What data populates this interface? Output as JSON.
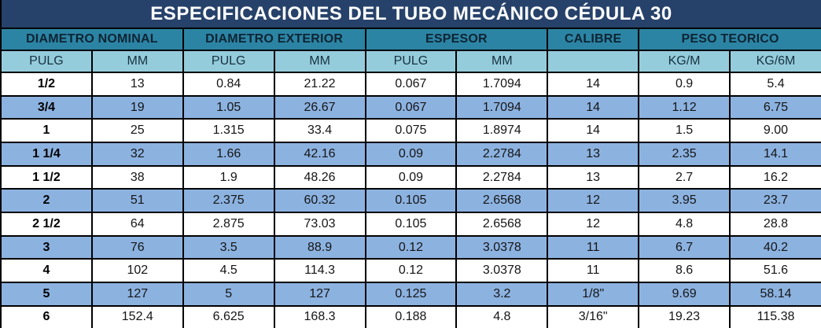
{
  "title": "ESPECIFICACIONES DEL TUBO MECÁNICO CÉDULA 30",
  "colors": {
    "title_bg": "#27426A",
    "title_text": "#FFFFFF",
    "group_header_bg": "#2C84A4",
    "subheader_bg": "#95CCDC",
    "row_bg": "#FFFFFF",
    "row_alt_bg": "#8CB2E0",
    "border": "#000000"
  },
  "table": {
    "group_headers": [
      {
        "label": "DIAMETRO NOMINAL",
        "colspan": 2
      },
      {
        "label": "DIAMETRO EXTERIOR",
        "colspan": 2
      },
      {
        "label": "ESPESOR",
        "colspan": 2
      },
      {
        "label": "CALIBRE",
        "colspan": 1
      },
      {
        "label": "PESO TEORICO",
        "colspan": 2
      }
    ],
    "subheaders": [
      "PULG",
      "MM",
      "PULG",
      "MM",
      "PULG",
      "MM",
      "",
      "KG/M",
      "KG/6M"
    ],
    "rows": [
      [
        "1/2",
        "13",
        "0.84",
        "21.22",
        "0.067",
        "1.7094",
        "14",
        "0.9",
        "5.4"
      ],
      [
        "3/4",
        "19",
        "1.05",
        "26.67",
        "0.067",
        "1.7094",
        "14",
        "1.12",
        "6.75"
      ],
      [
        "1",
        "25",
        "1.315",
        "33.4",
        "0.075",
        "1.8974",
        "14",
        "1.5",
        "9.00"
      ],
      [
        "1 1/4",
        "32",
        "1.66",
        "42.16",
        "0.09",
        "2.2784",
        "13",
        "2.35",
        "14.1"
      ],
      [
        "1 1/2",
        "38",
        "1.9",
        "48.26",
        "0.09",
        "2.2784",
        "13",
        "2.7",
        "16.2"
      ],
      [
        "2",
        "51",
        "2.375",
        "60.32",
        "0.105",
        "2.6568",
        "12",
        "3.95",
        "23.7"
      ],
      [
        "2 1/2",
        "64",
        "2.875",
        "73.03",
        "0.105",
        "2.6568",
        "12",
        "4.8",
        "28.8"
      ],
      [
        "3",
        "76",
        "3.5",
        "88.9",
        "0.12",
        "3.0378",
        "11",
        "6.7",
        "40.2"
      ],
      [
        "4",
        "102",
        "4.5",
        "114.3",
        "0.12",
        "3.0378",
        "11",
        "8.6",
        "51.6"
      ],
      [
        "5",
        "127",
        "5",
        "127",
        "0.125",
        "3.2",
        "1/8\"",
        "9.69",
        "58.14"
      ],
      [
        "6",
        "152.4",
        "6.625",
        "168.3",
        "0.188",
        "4.8",
        "3/16\"",
        "19.23",
        "115.38"
      ]
    ]
  }
}
